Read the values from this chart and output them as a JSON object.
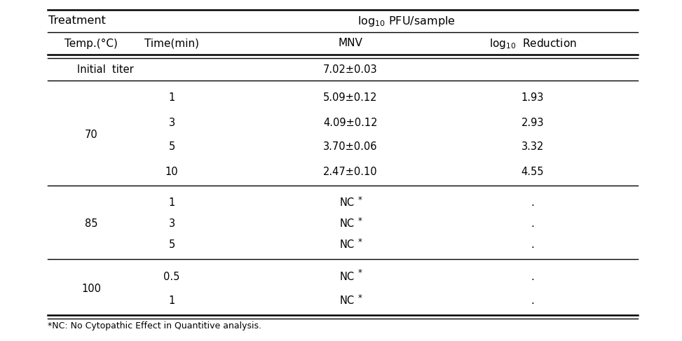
{
  "title_left": "Treatment",
  "title_right": "log$_{10}$ PFU/sample",
  "col_headers": [
    "Temp.(°C)",
    "Time(min)",
    "MNV",
    "log$_{10}$  Reduction"
  ],
  "initial_titer_label": "Initial  titer",
  "initial_titer_mnv": "7.02±0.03",
  "rows": [
    [
      "70",
      "1",
      "5.09±0.12",
      "1.93"
    ],
    [
      "70",
      "3",
      "4.09±0.12",
      "2.93"
    ],
    [
      "70",
      "5",
      "3.70±0.06",
      "3.32"
    ],
    [
      "70",
      "10",
      "2.47±0.10",
      "4.55"
    ],
    [
      "85",
      "1",
      "NC*",
      "."
    ],
    [
      "85",
      "3",
      "NC*",
      "."
    ],
    [
      "85",
      "5",
      "NC*",
      "."
    ],
    [
      "100",
      "0.5",
      "NC*",
      "."
    ],
    [
      "100",
      "1",
      "NC*",
      "."
    ]
  ],
  "footnote": "*NC: No Cytopathic Effect in Quantitive analysis.",
  "bg_color": "#ffffff",
  "text_color": "#000000",
  "line_color": "#000000",
  "font_size": 10.5,
  "header_font_size": 11,
  "title_font_size": 11.5
}
